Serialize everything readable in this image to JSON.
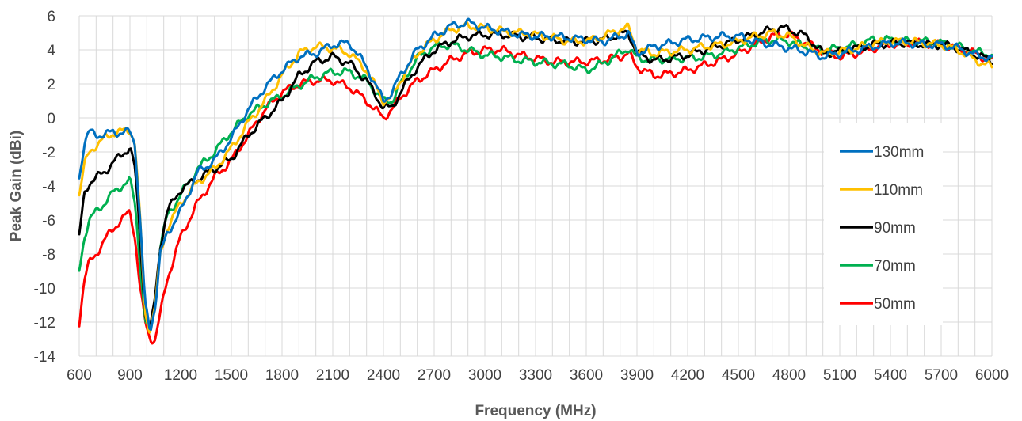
{
  "chart_data": {
    "type": "line",
    "title": "",
    "xlabel": "Frequency (MHz)",
    "ylabel": "Peak Gain (dBi)",
    "xlim": [
      600,
      6000
    ],
    "ylim": [
      -14,
      6
    ],
    "x_ticks": [
      600,
      900,
      1200,
      1500,
      1800,
      2100,
      2400,
      2700,
      3000,
      3300,
      3600,
      3900,
      4200,
      4500,
      4800,
      5100,
      5400,
      5700,
      6000
    ],
    "y_ticks": [
      -14,
      -12,
      -10,
      -8,
      -6,
      -4,
      -2,
      0,
      2,
      4,
      6
    ],
    "x_tick_labels": [
      "600",
      "900",
      "1200",
      "1500",
      "1800",
      "2100",
      "2400",
      "2700",
      "3000",
      "3300",
      "3600",
      "3900",
      "4200",
      "4500",
      "4800",
      "5100",
      "5400",
      "5700",
      "6000"
    ],
    "y_tick_labels": [
      "-14",
      "-12",
      "-10",
      "-8",
      "-6",
      "-4",
      "-2",
      "0",
      "2",
      "4",
      "6"
    ],
    "grid": true,
    "legend_position": "right",
    "series": [
      {
        "name": "130mm",
        "color": "#0070C0",
        "x": [
          600,
          630,
          660,
          700,
          750,
          800,
          850,
          900,
          930,
          960,
          990,
          1020,
          1050,
          1080,
          1120,
          1200,
          1300,
          1400,
          1500,
          1600,
          1700,
          1800,
          1900,
          2000,
          2100,
          2200,
          2300,
          2400,
          2450,
          2500,
          2600,
          2700,
          2800,
          2900,
          3000,
          3100,
          3200,
          3300,
          3400,
          3500,
          3600,
          3700,
          3800,
          3850,
          3900,
          4000,
          4100,
          4200,
          4300,
          4400,
          4500,
          4600,
          4700,
          4800,
          4900,
          5000,
          5100,
          5200,
          5300,
          5400,
          5500,
          5600,
          5700,
          5800,
          5900,
          6000
        ],
        "y": [
          -3.5,
          -1.5,
          -0.8,
          -1.0,
          -1.0,
          -0.8,
          -0.9,
          -0.8,
          -1.5,
          -6.0,
          -11.0,
          -12.5,
          -11.0,
          -8.0,
          -6.8,
          -5.5,
          -3.2,
          -2.5,
          -1.2,
          0.5,
          1.8,
          2.8,
          3.6,
          3.8,
          4.3,
          4.4,
          3.0,
          1.0,
          1.5,
          2.5,
          4.0,
          4.8,
          5.4,
          5.6,
          5.3,
          5.1,
          4.9,
          4.8,
          4.8,
          4.7,
          4.6,
          4.5,
          4.8,
          5.0,
          3.8,
          4.2,
          4.4,
          4.6,
          4.7,
          4.8,
          4.8,
          4.5,
          4.3,
          4.1,
          3.9,
          3.6,
          3.8,
          4.0,
          4.2,
          4.4,
          4.4,
          4.3,
          4.3,
          4.1,
          3.7,
          3.5
        ]
      },
      {
        "name": "110mm",
        "color": "#FFC000",
        "x": [
          600,
          630,
          660,
          700,
          750,
          800,
          850,
          900,
          930,
          960,
          990,
          1020,
          1050,
          1080,
          1120,
          1200,
          1300,
          1400,
          1500,
          1600,
          1700,
          1800,
          1900,
          2000,
          2100,
          2200,
          2300,
          2400,
          2450,
          2500,
          2600,
          2700,
          2800,
          2900,
          3000,
          3100,
          3200,
          3300,
          3400,
          3500,
          3600,
          3700,
          3800,
          3850,
          3900,
          4000,
          4100,
          4200,
          4300,
          4400,
          4500,
          4600,
          4700,
          4800,
          4900,
          5000,
          5100,
          5200,
          5300,
          5400,
          5500,
          5600,
          5700,
          5800,
          5900,
          6000
        ],
        "y": [
          -4.5,
          -2.8,
          -2.0,
          -1.6,
          -1.2,
          -0.9,
          -0.8,
          -0.7,
          -1.5,
          -6.0,
          -11.5,
          -12.5,
          -11.0,
          -8.0,
          -6.5,
          -5.0,
          -3.8,
          -3.0,
          -1.8,
          -0.3,
          1.0,
          2.5,
          3.8,
          4.2,
          4.1,
          3.8,
          2.8,
          1.0,
          1.2,
          2.2,
          3.8,
          4.6,
          5.2,
          5.4,
          5.3,
          5.1,
          5.0,
          4.9,
          4.7,
          4.5,
          4.5,
          4.8,
          5.2,
          5.3,
          4.0,
          3.8,
          3.9,
          4.0,
          4.2,
          4.3,
          4.5,
          4.8,
          5.0,
          4.8,
          4.2,
          3.8,
          3.9,
          4.1,
          4.4,
          4.5,
          4.5,
          4.4,
          4.3,
          4.0,
          3.4,
          3.0
        ]
      },
      {
        "name": "90mm",
        "color": "#000000",
        "x": [
          600,
          630,
          660,
          700,
          750,
          800,
          850,
          900,
          930,
          960,
          990,
          1020,
          1050,
          1080,
          1120,
          1200,
          1300,
          1400,
          1500,
          1600,
          1700,
          1800,
          1900,
          2000,
          2100,
          2200,
          2300,
          2400,
          2450,
          2500,
          2600,
          2700,
          2800,
          2900,
          3000,
          3100,
          3200,
          3300,
          3400,
          3500,
          3600,
          3700,
          3800,
          3850,
          3900,
          4000,
          4100,
          4200,
          4300,
          4400,
          4500,
          4600,
          4700,
          4750,
          4800,
          4900,
          5000,
          5100,
          5200,
          5300,
          5400,
          5500,
          5600,
          5700,
          5800,
          5900,
          6000
        ],
        "y": [
          -7.0,
          -4.5,
          -3.8,
          -3.5,
          -3.2,
          -2.6,
          -2.2,
          -1.7,
          -3.0,
          -7.0,
          -11.5,
          -12.5,
          -10.5,
          -7.5,
          -5.5,
          -4.2,
          -3.6,
          -3.0,
          -2.4,
          -1.0,
          0.0,
          1.0,
          2.5,
          3.3,
          3.6,
          3.2,
          2.2,
          0.6,
          0.6,
          1.5,
          3.0,
          4.0,
          4.5,
          4.8,
          4.9,
          4.9,
          4.8,
          4.7,
          4.6,
          4.5,
          4.5,
          4.6,
          4.9,
          5.0,
          3.8,
          3.4,
          3.5,
          3.7,
          4.0,
          4.3,
          4.6,
          4.9,
          5.2,
          5.3,
          5.2,
          4.8,
          3.8,
          3.9,
          4.1,
          4.3,
          4.4,
          4.4,
          4.3,
          4.3,
          4.1,
          3.7,
          3.4
        ]
      },
      {
        "name": "70mm",
        "color": "#00B050",
        "x": [
          600,
          630,
          660,
          700,
          750,
          800,
          850,
          900,
          930,
          960,
          990,
          1020,
          1050,
          1080,
          1120,
          1200,
          1300,
          1400,
          1500,
          1600,
          1700,
          1800,
          1900,
          2000,
          2100,
          2200,
          2300,
          2400,
          2450,
          2500,
          2600,
          2700,
          2800,
          2900,
          3000,
          3100,
          3200,
          3300,
          3400,
          3500,
          3600,
          3700,
          3800,
          3850,
          3900,
          4000,
          4100,
          4200,
          4300,
          4400,
          4500,
          4600,
          4700,
          4800,
          4900,
          5000,
          5100,
          5200,
          5300,
          5400,
          5500,
          5600,
          5700,
          5800,
          5900,
          6000
        ],
        "y": [
          -9.0,
          -7.0,
          -6.0,
          -5.5,
          -5.0,
          -4.4,
          -4.0,
          -3.7,
          -5.0,
          -8.5,
          -12.0,
          -12.5,
          -10.5,
          -7.5,
          -5.8,
          -4.5,
          -3.0,
          -2.0,
          -0.8,
          0.2,
          0.8,
          1.3,
          1.9,
          2.4,
          2.7,
          2.7,
          2.2,
          1.0,
          1.0,
          2.0,
          3.5,
          4.2,
          4.3,
          4.0,
          3.7,
          3.6,
          3.4,
          3.3,
          3.2,
          3.1,
          2.8,
          3.2,
          3.8,
          4.1,
          3.5,
          3.4,
          3.5,
          3.5,
          3.6,
          3.8,
          4.1,
          4.4,
          4.6,
          4.5,
          4.2,
          4.0,
          4.1,
          4.3,
          4.6,
          4.6,
          4.5,
          4.5,
          4.4,
          4.2,
          3.9,
          3.7
        ]
      },
      {
        "name": "50mm",
        "color": "#FF0000",
        "x": [
          600,
          630,
          660,
          700,
          750,
          800,
          850,
          900,
          930,
          960,
          990,
          1020,
          1050,
          1080,
          1120,
          1200,
          1300,
          1400,
          1500,
          1600,
          1700,
          1800,
          1900,
          2000,
          2100,
          2200,
          2300,
          2400,
          2450,
          2500,
          2600,
          2700,
          2800,
          2900,
          3000,
          3100,
          3200,
          3300,
          3400,
          3500,
          3600,
          3700,
          3800,
          3850,
          3900,
          4000,
          4100,
          4200,
          4300,
          4400,
          4500,
          4600,
          4700,
          4800,
          4900,
          5000,
          5100,
          5200,
          5300,
          5400,
          5500,
          5600,
          5700,
          5800,
          5900,
          6000
        ],
        "y": [
          -12.0,
          -9.5,
          -8.5,
          -8.0,
          -7.2,
          -6.5,
          -6.0,
          -5.5,
          -7.0,
          -10.0,
          -12.0,
          -13.0,
          -13.0,
          -11.5,
          -9.5,
          -7.0,
          -5.0,
          -3.5,
          -2.5,
          -1.0,
          0.5,
          1.5,
          2.0,
          2.2,
          2.2,
          1.8,
          1.0,
          0.0,
          0.5,
          1.2,
          2.2,
          2.8,
          3.4,
          3.8,
          4.0,
          4.0,
          3.7,
          3.5,
          3.3,
          3.3,
          3.3,
          3.4,
          3.6,
          3.8,
          3.0,
          2.5,
          2.6,
          2.8,
          3.1,
          3.4,
          3.8,
          4.3,
          4.8,
          4.9,
          4.4,
          3.9,
          3.6,
          3.8,
          4.1,
          4.3,
          4.4,
          4.4,
          4.3,
          4.1,
          3.8,
          3.3
        ]
      }
    ]
  }
}
